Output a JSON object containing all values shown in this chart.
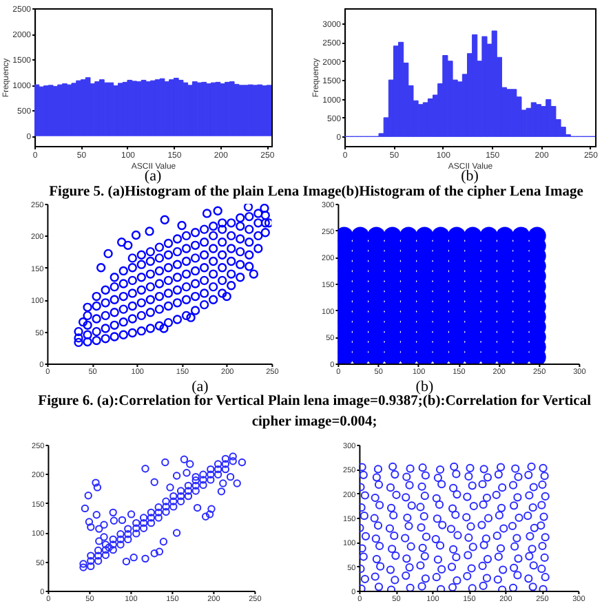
{
  "chart_data": [
    {
      "type": "histogram",
      "xlabel": "ASCII Value",
      "ylabel": "Frequency",
      "color": "#3b3bf2",
      "bins": [
        0,
        5,
        10,
        15,
        20,
        25,
        30,
        35,
        40,
        45,
        50,
        55,
        60,
        65,
        70,
        75,
        80,
        85,
        90,
        95,
        100,
        105,
        110,
        115,
        120,
        125,
        130,
        135,
        140,
        145,
        150,
        155,
        160,
        165,
        170,
        175,
        180,
        185,
        190,
        195,
        200,
        205,
        210,
        215,
        220,
        225,
        230,
        235,
        240,
        245,
        250,
        255
      ],
      "values": [
        1000,
        960,
        980,
        990,
        970,
        1000,
        1020,
        1000,
        1030,
        1080,
        1100,
        1140,
        1020,
        1060,
        1100,
        1040,
        1040,
        980,
        1030,
        1050,
        1090,
        1070,
        1060,
        1090,
        1060,
        1080,
        1100,
        1120,
        1060,
        1100,
        1130,
        1090,
        1040,
        990,
        1060,
        1040,
        1050,
        1020,
        1040,
        1050,
        1020,
        1050,
        1060,
        1010,
        990,
        990,
        1000,
        990,
        1000,
        980,
        990
      ],
      "xlim": [
        0,
        255
      ],
      "ylim": [
        -200,
        2500
      ],
      "xticks": [
        0,
        50,
        100,
        150,
        200,
        250
      ],
      "yticks": [
        0,
        500,
        1000,
        1500,
        2000,
        2500
      ],
      "annotations": [
        "(a)"
      ]
    },
    {
      "type": "histogram",
      "xlabel": "ASCII Value",
      "ylabel": "Frequency",
      "color": "#3b3bf2",
      "bins": [
        0,
        5,
        10,
        15,
        20,
        25,
        30,
        35,
        40,
        45,
        50,
        55,
        60,
        65,
        70,
        75,
        80,
        85,
        90,
        95,
        100,
        105,
        110,
        115,
        120,
        125,
        130,
        135,
        140,
        145,
        150,
        155,
        160,
        165,
        170,
        175,
        180,
        185,
        190,
        195,
        200,
        205,
        210,
        215,
        220,
        225,
        230,
        235,
        240,
        245,
        250,
        255
      ],
      "values": [
        0,
        0,
        0,
        0,
        0,
        0,
        0,
        80,
        500,
        1500,
        2400,
        2500,
        1950,
        1350,
        950,
        850,
        900,
        1000,
        1100,
        1400,
        2150,
        2000,
        1500,
        1450,
        1650,
        2200,
        2700,
        2000,
        2650,
        2450,
        2800,
        2100,
        1300,
        1250,
        1250,
        1050,
        700,
        750,
        900,
        850,
        800,
        980,
        800,
        450,
        250,
        50,
        0,
        0,
        0,
        0,
        0
      ],
      "xlim": [
        0,
        255
      ],
      "ylim": [
        -250,
        3400
      ],
      "xticks": [
        0,
        50,
        100,
        150,
        200,
        250
      ],
      "yticks": [
        0,
        500,
        1000,
        1500,
        2000,
        2500,
        3000
      ],
      "annotations": [
        "(b)"
      ]
    },
    {
      "type": "other",
      "annotations": [
        "Figure 5. (a)Histogram of the plain Lena Image(b)Histogram of the cipher Lena Image"
      ]
    },
    {
      "type": "scatter",
      "color": "#0000ff",
      "marker": "circle",
      "x": [
        35,
        35,
        35,
        45,
        45,
        45,
        45,
        55,
        55,
        55,
        55,
        55,
        65,
        65,
        65,
        65,
        65,
        75,
        75,
        75,
        75,
        75,
        75,
        85,
        85,
        85,
        85,
        85,
        85,
        95,
        95,
        95,
        95,
        95,
        95,
        95,
        105,
        105,
        105,
        105,
        105,
        105,
        105,
        115,
        115,
        115,
        115,
        115,
        115,
        115,
        125,
        125,
        125,
        125,
        125,
        125,
        125,
        135,
        135,
        135,
        135,
        135,
        135,
        135,
        145,
        145,
        145,
        145,
        145,
        145,
        145,
        155,
        155,
        155,
        155,
        155,
        155,
        155,
        165,
        165,
        165,
        165,
        165,
        165,
        165,
        175,
        175,
        175,
        175,
        175,
        175,
        175,
        185,
        185,
        185,
        185,
        185,
        185,
        185,
        195,
        195,
        195,
        195,
        195,
        195,
        195,
        205,
        205,
        205,
        205,
        205,
        205,
        215,
        215,
        215,
        215,
        215,
        215,
        225,
        225,
        225,
        225,
        225,
        235,
        235,
        235,
        235,
        243,
        243,
        243,
        131,
        114,
        83,
        178,
        190,
        224,
        242,
        247,
        68,
        99,
        150,
        60,
        45,
        130,
        160,
        200,
        230,
        40,
        90
      ],
      "values": [
        33,
        40,
        50,
        34,
        45,
        60,
        75,
        36,
        50,
        70,
        90,
        105,
        39,
        55,
        75,
        95,
        115,
        42,
        60,
        80,
        100,
        120,
        135,
        45,
        65,
        85,
        105,
        125,
        145,
        48,
        70,
        90,
        110,
        130,
        150,
        165,
        51,
        75,
        95,
        115,
        135,
        155,
        170,
        55,
        80,
        100,
        120,
        140,
        160,
        175,
        59,
        85,
        105,
        125,
        145,
        165,
        182,
        64,
        90,
        110,
        130,
        150,
        170,
        188,
        69,
        95,
        115,
        135,
        155,
        175,
        195,
        75,
        100,
        120,
        140,
        160,
        180,
        200,
        83,
        105,
        125,
        145,
        165,
        185,
        205,
        92,
        110,
        130,
        150,
        170,
        190,
        210,
        100,
        120,
        140,
        160,
        180,
        200,
        215,
        110,
        130,
        150,
        170,
        190,
        210,
        220,
        122,
        140,
        160,
        180,
        200,
        220,
        135,
        155,
        175,
        195,
        215,
        228,
        152,
        170,
        190,
        210,
        230,
        180,
        200,
        220,
        235,
        205,
        220,
        232,
        225,
        207,
        190,
        235,
        239,
        245,
        243,
        220,
        172,
        201,
        216,
        150,
        88,
        55,
        72,
        105,
        140,
        65,
        185
      ],
      "xlim": [
        0,
        250
      ],
      "ylim": [
        0,
        250
      ],
      "xticks": [
        0,
        50,
        100,
        150,
        200,
        250
      ],
      "yticks": [
        0,
        50,
        100,
        150,
        200,
        250
      ],
      "annotations": [
        "(a)"
      ]
    },
    {
      "type": "scatter",
      "color": "#0000ff",
      "marker": "circle",
      "x": [
        8,
        8,
        8,
        8,
        8,
        8,
        8,
        8,
        8,
        8,
        8,
        8,
        8,
        28,
        28,
        28,
        28,
        28,
        28,
        28,
        28,
        28,
        28,
        28,
        28,
        28,
        48,
        48,
        48,
        48,
        48,
        48,
        48,
        48,
        48,
        48,
        48,
        48,
        48,
        68,
        68,
        68,
        68,
        68,
        68,
        68,
        68,
        68,
        68,
        68,
        68,
        68,
        88,
        88,
        88,
        88,
        88,
        88,
        88,
        88,
        88,
        88,
        88,
        88,
        88,
        108,
        108,
        108,
        108,
        108,
        108,
        108,
        108,
        108,
        108,
        108,
        108,
        108,
        128,
        128,
        128,
        128,
        128,
        128,
        128,
        128,
        128,
        128,
        128,
        128,
        128,
        148,
        148,
        148,
        148,
        148,
        148,
        148,
        148,
        148,
        148,
        148,
        148,
        148,
        168,
        168,
        168,
        168,
        168,
        168,
        168,
        168,
        168,
        168,
        168,
        168,
        168,
        188,
        188,
        188,
        188,
        188,
        188,
        188,
        188,
        188,
        188,
        188,
        188,
        188,
        208,
        208,
        208,
        208,
        208,
        208,
        208,
        208,
        208,
        208,
        208,
        208,
        208,
        228,
        228,
        228,
        228,
        228,
        228,
        228,
        228,
        228,
        228,
        228,
        228,
        228,
        248,
        248,
        248,
        248,
        248,
        248,
        248,
        248,
        248,
        248,
        248,
        248,
        248
      ],
      "values": [
        12,
        31,
        50,
        69,
        88,
        107,
        126,
        145,
        164,
        183,
        202,
        221,
        240,
        12,
        31,
        50,
        69,
        88,
        107,
        126,
        145,
        164,
        183,
        202,
        221,
        240,
        12,
        31,
        50,
        69,
        88,
        107,
        126,
        145,
        164,
        183,
        202,
        221,
        240,
        12,
        31,
        50,
        69,
        88,
        107,
        126,
        145,
        164,
        183,
        202,
        221,
        240,
        12,
        31,
        50,
        69,
        88,
        107,
        126,
        145,
        164,
        183,
        202,
        221,
        240,
        12,
        31,
        50,
        69,
        88,
        107,
        126,
        145,
        164,
        183,
        202,
        221,
        240,
        12,
        31,
        50,
        69,
        88,
        107,
        126,
        145,
        164,
        183,
        202,
        221,
        240,
        12,
        31,
        50,
        69,
        88,
        107,
        126,
        145,
        164,
        183,
        202,
        221,
        240,
        12,
        31,
        50,
        69,
        88,
        107,
        126,
        145,
        164,
        183,
        202,
        221,
        240,
        12,
        31,
        50,
        69,
        88,
        107,
        126,
        145,
        164,
        183,
        202,
        221,
        240,
        12,
        31,
        50,
        69,
        88,
        107,
        126,
        145,
        164,
        183,
        202,
        221,
        240,
        12,
        31,
        50,
        69,
        88,
        107,
        126,
        145,
        164,
        183,
        202,
        221,
        240,
        12,
        31,
        50,
        69,
        88,
        107,
        126,
        145,
        164,
        183,
        202,
        221,
        240
      ],
      "xlim": [
        0,
        300
      ],
      "ylim": [
        0,
        300
      ],
      "xticks": [
        0,
        50,
        100,
        150,
        200,
        250,
        300
      ],
      "yticks": [
        0,
        50,
        100,
        150,
        200,
        250,
        300
      ],
      "annotations": [
        "(b)"
      ]
    },
    {
      "type": "other",
      "annotations": [
        "Figure 6. (a):Correlation for Vertical Plain lena image=0.9387;(b):Correlation for  Vertical cipher image=0.004;"
      ]
    },
    {
      "type": "scatter",
      "color": "#2b2bff",
      "marker": "circle",
      "x": [
        43,
        43,
        52,
        52,
        52,
        61,
        61,
        61,
        70,
        70,
        70,
        79,
        79,
        79,
        88,
        88,
        88,
        97,
        97,
        97,
        107,
        107,
        107,
        116,
        116,
        116,
        125,
        125,
        125,
        134,
        134,
        134,
        143,
        143,
        143,
        152,
        152,
        152,
        161,
        161,
        161,
        170,
        170,
        170,
        179,
        179,
        179,
        188,
        188,
        188,
        197,
        197,
        197,
        206,
        206,
        206,
        215,
        215,
        215,
        224,
        224,
        58,
        60,
        49,
        45,
        59,
        50,
        52,
        62,
        68,
        79,
        80,
        90,
        101,
        118,
        142,
        165,
        172,
        129,
        148,
        156,
        168,
        179,
        181,
        191,
        198,
        196,
        156,
        140,
        129,
        118,
        104,
        95,
        135,
        74,
        68,
        62,
        212,
        221,
        210,
        229,
        235
      ],
      "values": [
        40,
        46,
        42,
        51,
        60,
        51,
        60,
        69,
        61,
        70,
        79,
        70,
        79,
        88,
        79,
        88,
        97,
        88,
        97,
        106,
        98,
        107,
        116,
        107,
        116,
        125,
        116,
        125,
        134,
        125,
        134,
        143,
        135,
        144,
        153,
        144,
        153,
        162,
        153,
        162,
        171,
        162,
        171,
        180,
        171,
        180,
        189,
        181,
        190,
        199,
        190,
        199,
        208,
        199,
        208,
        217,
        208,
        217,
        226,
        222,
        230,
        185,
        177,
        163,
        141,
        130,
        118,
        109,
        106,
        113,
        134,
        120,
        121,
        131,
        209,
        220,
        225,
        217,
        186,
        177,
        197,
        202,
        195,
        142,
        127,
        140,
        131,
        99,
        84,
        64,
        55,
        57,
        50,
        67,
        74,
        92,
        85,
        184,
        195,
        170,
        184,
        220
      ],
      "xlim": [
        0,
        250
      ],
      "ylim": [
        0,
        250
      ],
      "xticks": [
        0,
        50,
        100,
        150,
        200,
        250
      ],
      "yticks": [
        0,
        50,
        100,
        150,
        200,
        250
      ]
    },
    {
      "type": "scatter",
      "color": "#2b2bff",
      "marker": "circle",
      "x": [
        3,
        27,
        44,
        70,
        86,
        112,
        128,
        155,
        170,
        196,
        211,
        238,
        252,
        8,
        22,
        49,
        64,
        91,
        106,
        134,
        148,
        175,
        190,
        217,
        232,
        255,
        2,
        29,
        43,
        69,
        84,
        113,
        127,
        154,
        169,
        197,
        212,
        239,
        250,
        6,
        24,
        50,
        65,
        90,
        108,
        133,
        149,
        176,
        191,
        218,
        233,
        254,
        4,
        28,
        45,
        71,
        87,
        111,
        129,
        156,
        171,
        194,
        213,
        237,
        251,
        9,
        23,
        48,
        63,
        92,
        105,
        135,
        150,
        174,
        189,
        216,
        234,
        255,
        1,
        26,
        42,
        68,
        85,
        114,
        126,
        153,
        168,
        198,
        210,
        240,
        249,
        7,
        21,
        47,
        66,
        89,
        107,
        132,
        147,
        177,
        192,
        219,
        231,
        253,
        3,
        28,
        44,
        72,
        84,
        110,
        128,
        157,
        170,
        195,
        212,
        238,
        250,
        8,
        22,
        51,
        64,
        90,
        106,
        134,
        148,
        175,
        188,
        217,
        233,
        255,
        2,
        27,
        43,
        69,
        86,
        113,
        129,
        155,
        169,
        196,
        211,
        239,
        251,
        6,
        24,
        49,
        65,
        91,
        108,
        133,
        150,
        176,
        191,
        218,
        232,
        254,
        4,
        26,
        46,
        70,
        87,
        111,
        130,
        152,
        171,
        194,
        214,
        236,
        252
      ],
      "values": [
        4,
        8,
        2,
        6,
        9,
        3,
        7,
        5,
        10,
        2,
        6,
        8,
        3,
        24,
        29,
        22,
        31,
        25,
        28,
        21,
        30,
        26,
        23,
        32,
        25,
        28,
        45,
        50,
        43,
        48,
        52,
        44,
        49,
        46,
        51,
        43,
        47,
        52,
        45,
        70,
        65,
        72,
        66,
        71,
        64,
        69,
        73,
        65,
        70,
        66,
        71,
        68,
        87,
        92,
        86,
        91,
        88,
        93,
        85,
        90,
        94,
        87,
        91,
        86,
        92,
        112,
        107,
        113,
        108,
        111,
        106,
        114,
        109,
        107,
        113,
        108,
        112,
        110,
        129,
        134,
        128,
        133,
        130,
        135,
        127,
        132,
        135,
        128,
        133,
        129,
        134,
        154,
        149,
        155,
        150,
        153,
        148,
        156,
        151,
        149,
        155,
        150,
        154,
        152,
        171,
        176,
        170,
        175,
        172,
        177,
        169,
        174,
        177,
        170,
        175,
        171,
        176,
        196,
        191,
        197,
        192,
        195,
        190,
        198,
        193,
        191,
        197,
        192,
        196,
        194,
        213,
        218,
        212,
        217,
        214,
        219,
        211,
        216,
        219,
        212,
        217,
        213,
        218,
        238,
        233,
        239,
        234,
        237,
        232,
        240,
        235,
        233,
        239,
        234,
        238,
        236,
        254,
        250,
        255,
        251,
        253,
        249,
        255,
        252,
        250,
        254,
        251,
        255,
        252
      ],
      "xlim": [
        0,
        300
      ],
      "ylim": [
        0,
        300
      ],
      "xticks": [
        0,
        50,
        100,
        150,
        200,
        250,
        300
      ],
      "yticks": [
        0,
        50,
        100,
        150,
        200,
        250,
        300
      ]
    }
  ]
}
